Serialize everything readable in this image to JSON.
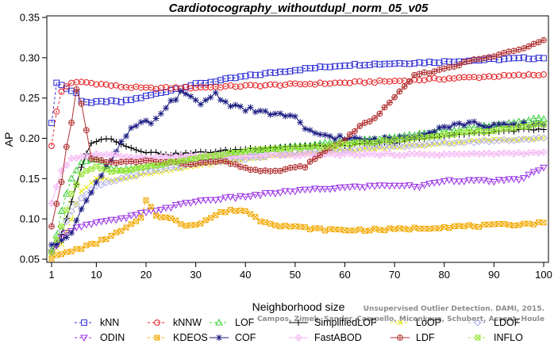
{
  "chart_data": {
    "type": "line",
    "title": "Cardiotocography_withoutdupl_norm_05_v05",
    "xlabel": "Neighborhood size",
    "ylabel": "AP",
    "xlim": [
      1,
      100
    ],
    "ylim": [
      0.05,
      0.35
    ],
    "xticks": [
      1,
      10,
      20,
      30,
      40,
      50,
      60,
      70,
      80,
      90,
      100
    ],
    "yticks": [
      0.05,
      0.1,
      0.15,
      0.2,
      0.25,
      0.3,
      0.35
    ],
    "grid": false,
    "legend_position": "bottom",
    "watermark": [
      "Unsupervised Outlier Detection. DAMI, 2015.",
      "Campos, Zimek, Sander, Campello, Micenkova, Schubert, Assent, Houle"
    ],
    "series": [
      {
        "name": "kNN",
        "color": "#2b2bd4",
        "marker": "square",
        "dash": "3,3",
        "keypoints": [
          [
            1,
            0.218
          ],
          [
            2,
            0.27
          ],
          [
            3,
            0.266
          ],
          [
            4,
            0.262
          ],
          [
            6,
            0.256
          ],
          [
            7,
            0.247
          ],
          [
            9,
            0.244
          ],
          [
            12,
            0.246
          ],
          [
            15,
            0.245
          ],
          [
            20,
            0.252
          ],
          [
            25,
            0.26
          ],
          [
            30,
            0.267
          ],
          [
            40,
            0.277
          ],
          [
            50,
            0.285
          ],
          [
            60,
            0.291
          ],
          [
            70,
            0.293
          ],
          [
            80,
            0.295
          ],
          [
            90,
            0.298
          ],
          [
            100,
            0.3
          ]
        ]
      },
      {
        "name": "kNNW",
        "color": "#e41a1c",
        "marker": "circle",
        "dash": "3,3",
        "keypoints": [
          [
            1,
            0.19
          ],
          [
            2,
            0.233
          ],
          [
            3,
            0.258
          ],
          [
            4,
            0.265
          ],
          [
            5,
            0.268
          ],
          [
            7,
            0.27
          ],
          [
            10,
            0.268
          ],
          [
            15,
            0.264
          ],
          [
            20,
            0.262
          ],
          [
            30,
            0.263
          ],
          [
            40,
            0.265
          ],
          [
            50,
            0.267
          ],
          [
            60,
            0.269
          ],
          [
            70,
            0.271
          ],
          [
            80,
            0.274
          ],
          [
            90,
            0.277
          ],
          [
            100,
            0.279
          ]
        ]
      },
      {
        "name": "LOF",
        "color": "#33cc33",
        "marker": "triangle-up",
        "dash": "3,3",
        "keypoints": [
          [
            1,
            0.062
          ],
          [
            2,
            0.08
          ],
          [
            3,
            0.11
          ],
          [
            5,
            0.15
          ],
          [
            7,
            0.17
          ],
          [
            10,
            0.175
          ],
          [
            12,
            0.165
          ],
          [
            15,
            0.16
          ],
          [
            20,
            0.165
          ],
          [
            25,
            0.17
          ],
          [
            30,
            0.176
          ],
          [
            40,
            0.183
          ],
          [
            50,
            0.19
          ],
          [
            60,
            0.196
          ],
          [
            70,
            0.201
          ],
          [
            80,
            0.209
          ],
          [
            90,
            0.216
          ],
          [
            100,
            0.225
          ]
        ]
      },
      {
        "name": "SimplifiedLOF",
        "color": "#000000",
        "marker": "plus",
        "dash": "",
        "keypoints": [
          [
            1,
            0.06
          ],
          [
            3,
            0.08
          ],
          [
            5,
            0.12
          ],
          [
            7,
            0.165
          ],
          [
            9,
            0.195
          ],
          [
            11,
            0.198
          ],
          [
            13,
            0.2
          ],
          [
            16,
            0.19
          ],
          [
            20,
            0.183
          ],
          [
            25,
            0.18
          ],
          [
            30,
            0.182
          ],
          [
            35,
            0.184
          ],
          [
            40,
            0.187
          ],
          [
            50,
            0.19
          ],
          [
            60,
            0.191
          ],
          [
            70,
            0.195
          ],
          [
            80,
            0.203
          ],
          [
            90,
            0.208
          ],
          [
            100,
            0.212
          ]
        ]
      },
      {
        "name": "LoOP",
        "color": "#e6e600",
        "marker": "x",
        "dash": "3,3",
        "keypoints": [
          [
            1,
            0.056
          ],
          [
            3,
            0.07
          ],
          [
            5,
            0.1
          ],
          [
            7,
            0.135
          ],
          [
            10,
            0.15
          ],
          [
            13,
            0.148
          ],
          [
            17,
            0.152
          ],
          [
            20,
            0.155
          ],
          [
            25,
            0.16
          ],
          [
            30,
            0.166
          ],
          [
            40,
            0.174
          ],
          [
            50,
            0.181
          ],
          [
            60,
            0.185
          ],
          [
            70,
            0.189
          ],
          [
            80,
            0.194
          ],
          [
            90,
            0.198
          ],
          [
            100,
            0.2
          ]
        ]
      },
      {
        "name": "LDOF",
        "color": "#b0b0f0",
        "marker": "diamond",
        "dash": "3,3",
        "keypoints": [
          [
            1,
            0.06
          ],
          [
            3,
            0.085
          ],
          [
            5,
            0.11
          ],
          [
            7,
            0.125
          ],
          [
            10,
            0.14
          ],
          [
            15,
            0.15
          ],
          [
            20,
            0.158
          ],
          [
            30,
            0.168
          ],
          [
            40,
            0.175
          ],
          [
            50,
            0.182
          ],
          [
            60,
            0.186
          ],
          [
            70,
            0.19
          ],
          [
            80,
            0.194
          ],
          [
            90,
            0.197
          ],
          [
            100,
            0.2
          ]
        ]
      },
      {
        "name": "ODIN",
        "color": "#9933e6",
        "marker": "triangle-down",
        "dash": "3,3",
        "keypoints": [
          [
            1,
            0.058
          ],
          [
            3,
            0.078
          ],
          [
            6,
            0.09
          ],
          [
            10,
            0.095
          ],
          [
            15,
            0.1
          ],
          [
            20,
            0.108
          ],
          [
            25,
            0.115
          ],
          [
            30,
            0.122
          ],
          [
            40,
            0.128
          ],
          [
            50,
            0.135
          ],
          [
            60,
            0.139
          ],
          [
            70,
            0.142
          ],
          [
            75,
            0.14
          ],
          [
            80,
            0.148
          ],
          [
            90,
            0.147
          ],
          [
            95,
            0.149
          ],
          [
            100,
            0.163
          ]
        ]
      },
      {
        "name": "KDEOS",
        "color": "#f2a900",
        "marker": "square-x",
        "dash": "3,3",
        "keypoints": [
          [
            1,
            0.052
          ],
          [
            5,
            0.06
          ],
          [
            10,
            0.07
          ],
          [
            15,
            0.085
          ],
          [
            19,
            0.1
          ],
          [
            20,
            0.124
          ],
          [
            22,
            0.105
          ],
          [
            25,
            0.1
          ],
          [
            28,
            0.092
          ],
          [
            31,
            0.095
          ],
          [
            35,
            0.108
          ],
          [
            38,
            0.111
          ],
          [
            40,
            0.11
          ],
          [
            43,
            0.098
          ],
          [
            47,
            0.092
          ],
          [
            50,
            0.09
          ],
          [
            55,
            0.087
          ],
          [
            60,
            0.086
          ],
          [
            70,
            0.087
          ],
          [
            80,
            0.09
          ],
          [
            90,
            0.092
          ],
          [
            100,
            0.095
          ]
        ]
      },
      {
        "name": "COF",
        "color": "#1a1a80",
        "marker": "asterisk",
        "dash": "",
        "keypoints": [
          [
            1,
            0.065
          ],
          [
            3,
            0.075
          ],
          [
            5,
            0.085
          ],
          [
            7,
            0.11
          ],
          [
            9,
            0.135
          ],
          [
            11,
            0.155
          ],
          [
            13,
            0.175
          ],
          [
            15,
            0.195
          ],
          [
            17,
            0.21
          ],
          [
            19,
            0.218
          ],
          [
            21,
            0.22
          ],
          [
            23,
            0.228
          ],
          [
            25,
            0.245
          ],
          [
            27,
            0.256
          ],
          [
            29,
            0.25
          ],
          [
            31,
            0.243
          ],
          [
            33,
            0.252
          ],
          [
            34,
            0.255
          ],
          [
            36,
            0.245
          ],
          [
            38,
            0.24
          ],
          [
            40,
            0.237
          ],
          [
            43,
            0.232
          ],
          [
            46,
            0.231
          ],
          [
            50,
            0.225
          ],
          [
            52,
            0.21
          ],
          [
            55,
            0.205
          ],
          [
            60,
            0.2
          ],
          [
            65,
            0.197
          ],
          [
            70,
            0.2
          ],
          [
            75,
            0.205
          ],
          [
            80,
            0.215
          ],
          [
            85,
            0.219
          ],
          [
            90,
            0.215
          ],
          [
            100,
            0.218
          ]
        ]
      },
      {
        "name": "FastABOD",
        "color": "#f5b8f5",
        "marker": "diamond-plus",
        "dash": "",
        "keypoints": [
          [
            1,
            0.12
          ],
          [
            3,
            0.16
          ],
          [
            5,
            0.175
          ],
          [
            10,
            0.18
          ],
          [
            15,
            0.178
          ],
          [
            20,
            0.176
          ],
          [
            30,
            0.178
          ],
          [
            40,
            0.178
          ],
          [
            50,
            0.179
          ],
          [
            60,
            0.18
          ],
          [
            70,
            0.18
          ],
          [
            80,
            0.18
          ],
          [
            90,
            0.181
          ],
          [
            100,
            0.182
          ]
        ]
      },
      {
        "name": "LDF",
        "color": "#b03030",
        "marker": "circle-plus",
        "dash": "",
        "keypoints": [
          [
            1,
            0.09
          ],
          [
            3,
            0.145
          ],
          [
            4,
            0.19
          ],
          [
            5,
            0.22
          ],
          [
            6,
            0.26
          ],
          [
            7,
            0.243
          ],
          [
            9,
            0.176
          ],
          [
            12,
            0.17
          ],
          [
            15,
            0.17
          ],
          [
            20,
            0.172
          ],
          [
            25,
            0.17
          ],
          [
            30,
            0.168
          ],
          [
            35,
            0.172
          ],
          [
            40,
            0.163
          ],
          [
            45,
            0.158
          ],
          [
            48,
            0.162
          ],
          [
            52,
            0.165
          ],
          [
            55,
            0.18
          ],
          [
            60,
            0.198
          ],
          [
            63,
            0.215
          ],
          [
            66,
            0.225
          ],
          [
            70,
            0.25
          ],
          [
            74,
            0.278
          ],
          [
            78,
            0.283
          ],
          [
            82,
            0.29
          ],
          [
            86,
            0.297
          ],
          [
            90,
            0.302
          ],
          [
            95,
            0.31
          ],
          [
            100,
            0.323
          ]
        ]
      },
      {
        "name": "INFLO",
        "color": "#99e633",
        "marker": "hourglass",
        "dash": "3,3",
        "keypoints": [
          [
            1,
            0.06
          ],
          [
            3,
            0.09
          ],
          [
            5,
            0.13
          ],
          [
            7,
            0.155
          ],
          [
            10,
            0.165
          ],
          [
            13,
            0.158
          ],
          [
            17,
            0.16
          ],
          [
            20,
            0.165
          ],
          [
            30,
            0.175
          ],
          [
            40,
            0.184
          ],
          [
            50,
            0.188
          ],
          [
            60,
            0.192
          ],
          [
            70,
            0.198
          ],
          [
            80,
            0.204
          ],
          [
            90,
            0.21
          ],
          [
            100,
            0.218
          ]
        ]
      }
    ]
  }
}
